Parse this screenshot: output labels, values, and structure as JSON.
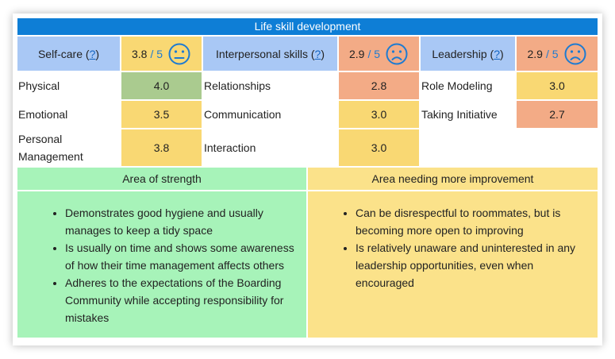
{
  "title": "Life skill development",
  "categories": [
    {
      "name": "Self-care",
      "help": "?",
      "score": "3.8",
      "max": "/ 5",
      "face": "neutral-face-icon"
    },
    {
      "name": "Interpersonal skills",
      "help": "?",
      "score": "2.9",
      "max": "/ 5",
      "face": "sad-face-icon"
    },
    {
      "name": "Leadership",
      "help": "?",
      "score": "2.9",
      "max": "/ 5",
      "face": "sad-face-icon"
    }
  ],
  "rows": {
    "self_care": [
      {
        "label": "Physical",
        "value": "4.0"
      },
      {
        "label": "Emotional",
        "value": "3.5"
      },
      {
        "label": "Personal Management",
        "value": "3.8"
      }
    ],
    "interpersonal": [
      {
        "label": "Relationships",
        "value": "2.8"
      },
      {
        "label": "Communication",
        "value": "3.0"
      },
      {
        "label": "Interaction",
        "value": "3.0"
      }
    ],
    "leadership": [
      {
        "label": "Role Modeling",
        "value": "3.0"
      },
      {
        "label": "Taking Initiative",
        "value": "2.7"
      }
    ]
  },
  "strength": {
    "heading": "Area of strength",
    "items": [
      "Demonstrates good hygiene and usually manages to keep a tidy space",
      "Is usually on time and shows some awareness of how their time management affects others",
      "Adheres to the expectations of the Boarding Community while accepting responsibility for mistakes"
    ]
  },
  "improvement": {
    "heading": "Area needing more improvement",
    "items": [
      "Can be disrespectful to roommates, but is becoming more open to improving",
      "Is relatively unaware and uninterested in any leadership opportunities, even when encouraged"
    ]
  },
  "colors": {
    "title_bg": "#0e7ed6",
    "header_bg": "#a9c8f5",
    "good": "#aacb8f",
    "ok": "#f9d873",
    "low": "#f3ab86",
    "strength_bg": "#a7f3b9",
    "improvement_bg": "#fbe28a"
  }
}
